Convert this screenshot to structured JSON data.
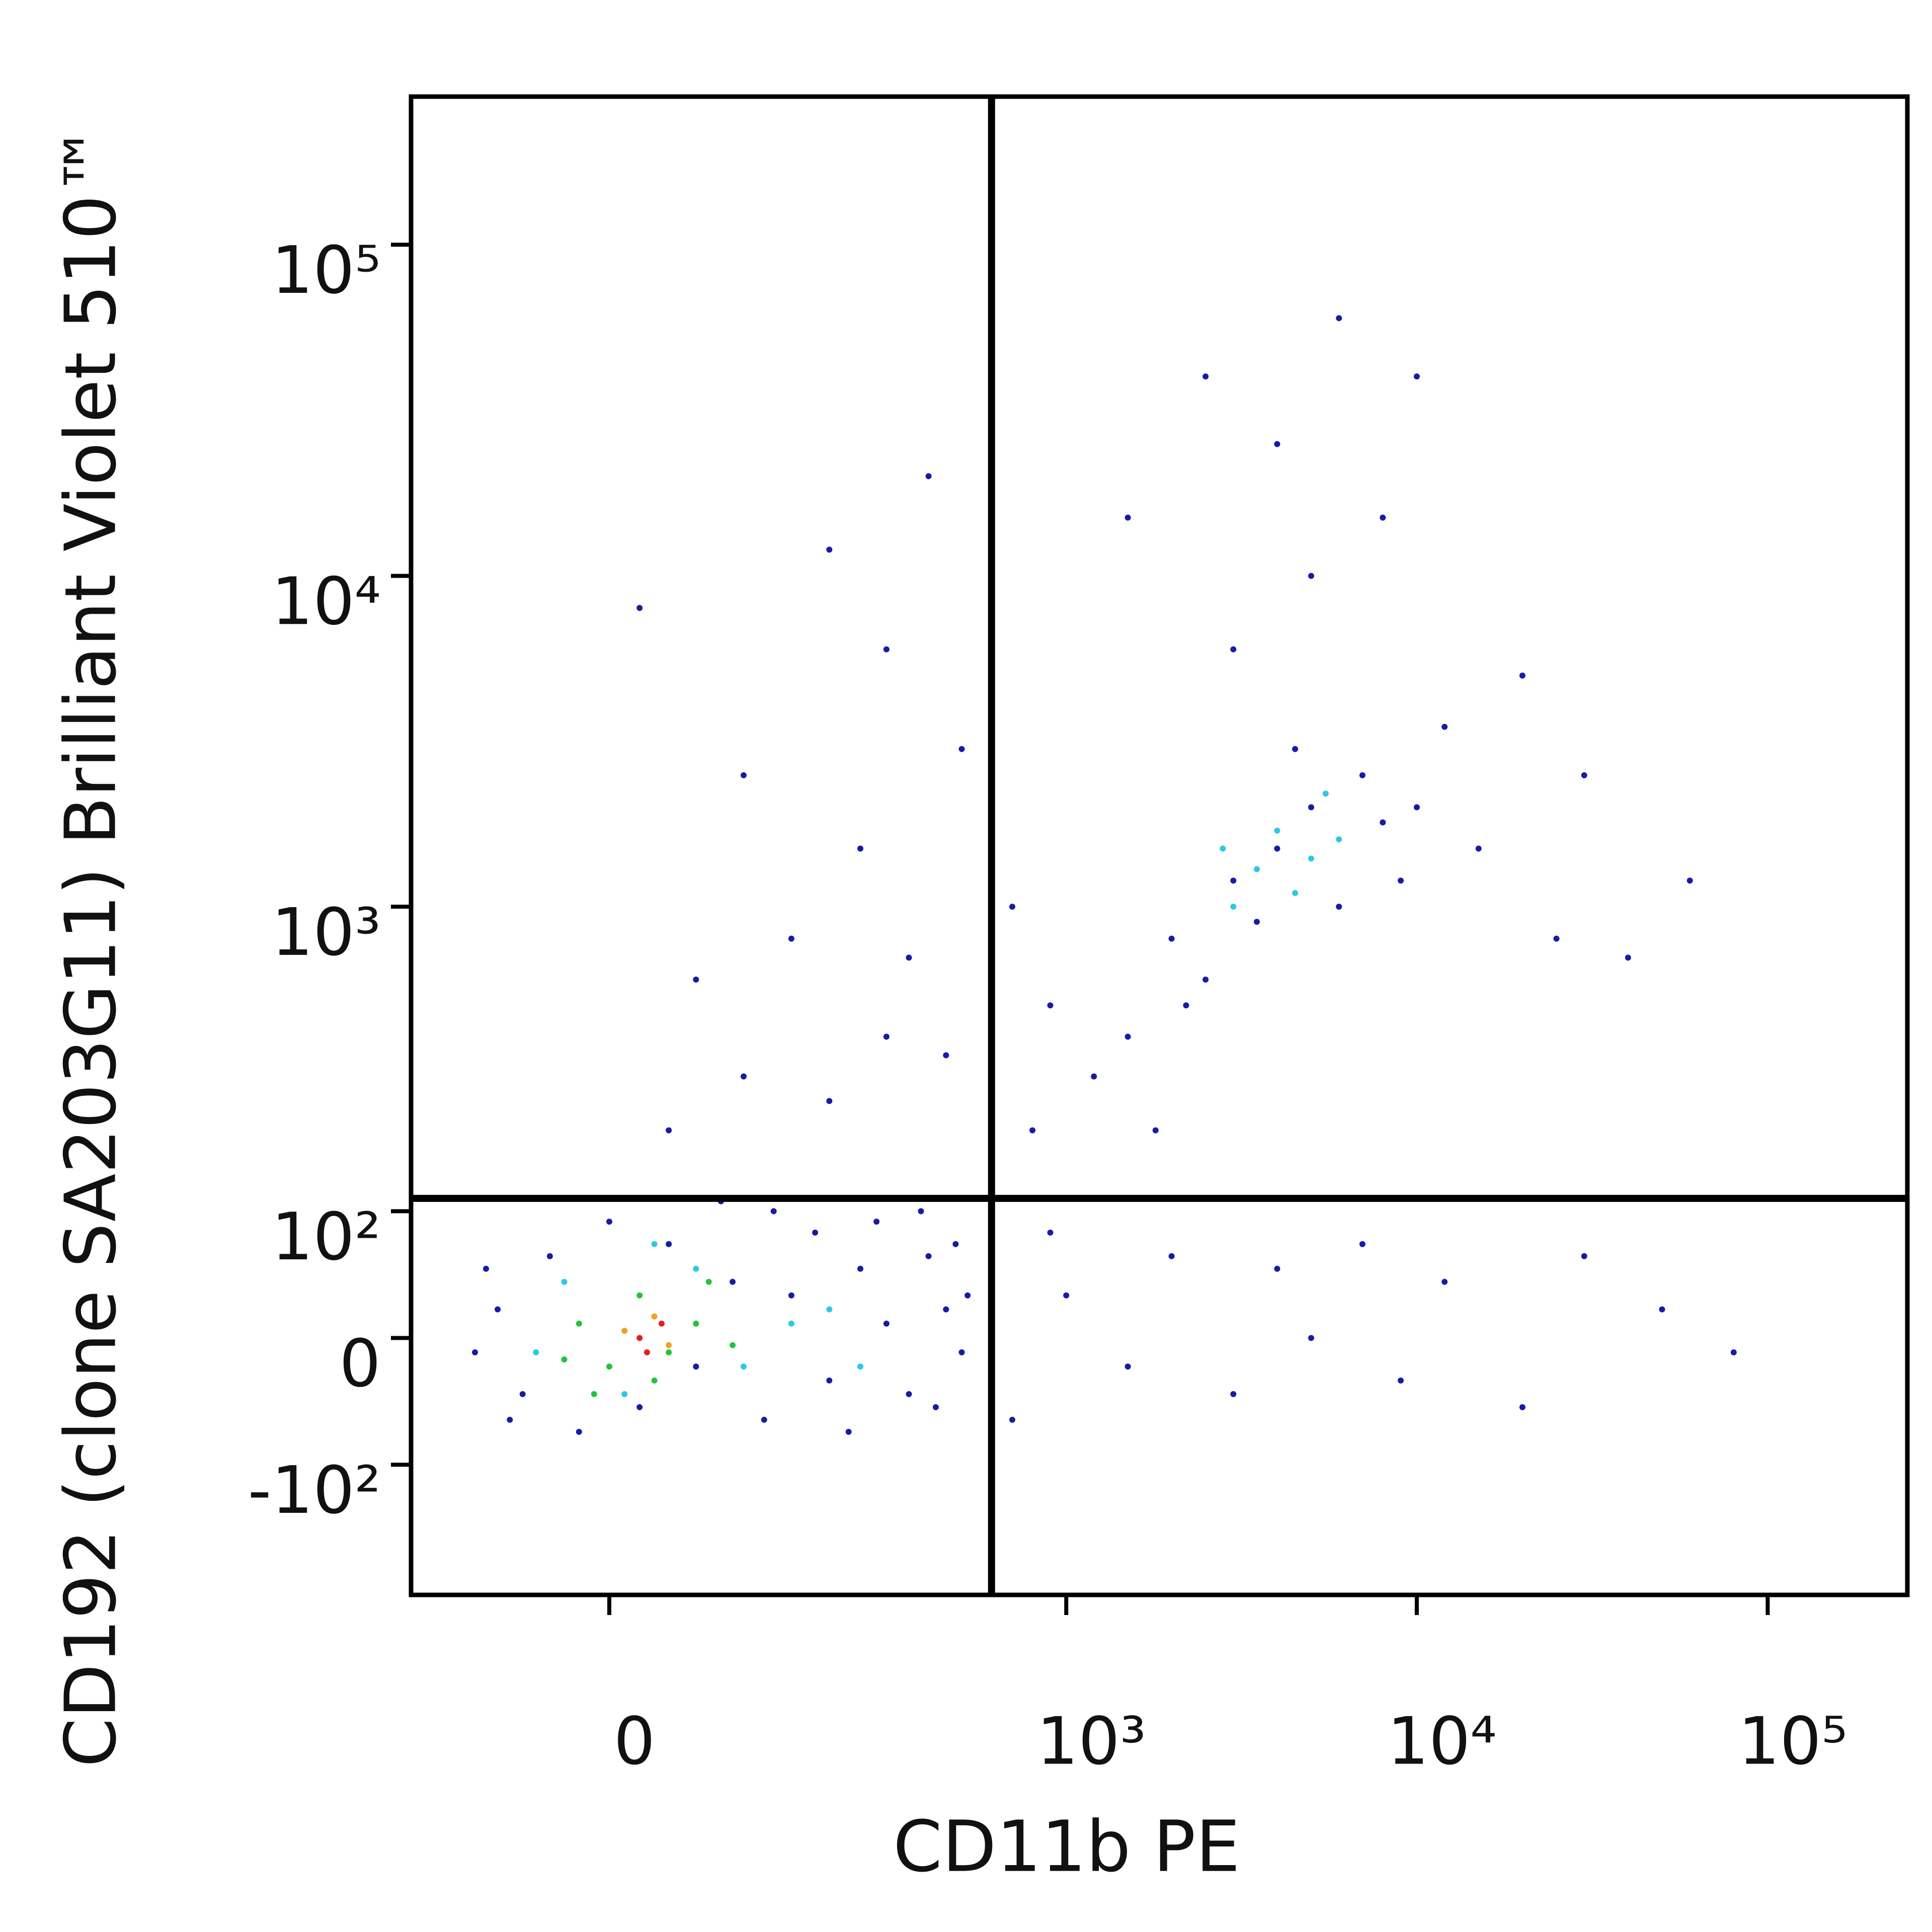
{
  "chart_data": {
    "type": "scatter",
    "xlabel": "CD11b PE",
    "ylabel": "CD192 (clone SA203G11) Brilliant Violet 510™",
    "xscale": "biexponential",
    "yscale": "biexponential",
    "xlim": [
      -170,
      250000
    ],
    "ylim": [
      -290,
      280000
    ],
    "xticks": [
      0,
      {
        "value": 1000,
        "label": "10³"
      },
      {
        "value": 10000,
        "label": "10⁴"
      },
      {
        "value": 100000,
        "label": "10⁵"
      }
    ],
    "yticks": [
      {
        "value": -100,
        "label": "-10²"
      },
      0,
      {
        "value": 100,
        "label": "10²"
      },
      {
        "value": 1000,
        "label": "10³"
      },
      {
        "value": 10000,
        "label": "10⁴"
      },
      {
        "value": 100000,
        "label": "10⁵"
      }
    ],
    "gates": {
      "x": 610,
      "y": 113
    },
    "series": [
      {
        "color": "#1a1aa8",
        "x": [
          -80,
          -60,
          -40,
          -20,
          0,
          20,
          40,
          60,
          90,
          120,
          150,
          180,
          200,
          250,
          300,
          350,
          400,
          450,
          500,
          -100,
          -90,
          80,
          130,
          230,
          280,
          380,
          420,
          480,
          520,
          -70,
          40,
          100,
          200,
          300,
          60,
          150,
          350,
          450,
          250,
          100,
          500,
          300,
          20,
          400,
          200,
          2000,
          3000,
          4000,
          5000,
          6000,
          2500,
          3500,
          7000,
          8000,
          4500,
          1500,
          1200,
          1800,
          2200,
          9000,
          10000,
          12000,
          15000,
          20000,
          3000,
          5000,
          8000,
          4000,
          6000,
          10000,
          2500,
          1500,
          900,
          800,
          700,
          25000,
          40000,
          60000,
          30000,
          1000,
          1500,
          2000,
          3000,
          4000,
          5000,
          7000,
          9000,
          12000,
          20000,
          30000,
          50000,
          80000,
          700,
          900
        ],
        "y": [
          20,
          -40,
          60,
          -70,
          90,
          -50,
          70,
          -20,
          40,
          -60,
          30,
          80,
          -30,
          50,
          10,
          -40,
          60,
          20,
          -10,
          -10,
          50,
          110,
          100,
          -70,
          90,
          100,
          -50,
          70,
          30,
          -60,
          200,
          300,
          250,
          400,
          600,
          800,
          700,
          350,
          1500,
          2500,
          3000,
          6000,
          8000,
          20000,
          12000,
          800,
          1200,
          1500,
          2000,
          1000,
          600,
          900,
          2500,
          1800,
          3000,
          400,
          300,
          200,
          500,
          1200,
          2000,
          3500,
          1500,
          5000,
          6000,
          10000,
          15000,
          25000,
          60000,
          40000,
          40000,
          15000,
          500,
          200,
          1000,
          800,
          700,
          1200,
          2500,
          30,
          -20,
          60,
          -40,
          50,
          0,
          70,
          -30,
          40,
          -50,
          60,
          20,
          -10,
          -60,
          80
        ]
      },
      {
        "color": "#2ec8e6",
        "x": [
          -30,
          10,
          60,
          100,
          150,
          -50,
          30,
          200,
          250,
          3500,
          4000,
          5000,
          3000,
          4500,
          6000,
          2800,
          5500
        ],
        "y": [
          40,
          -40,
          50,
          -20,
          10,
          -10,
          70,
          20,
          -20,
          1300,
          1700,
          1400,
          1000,
          1100,
          1600,
          1500,
          2200
        ]
      },
      {
        "color": "#22c43a",
        "x": [
          -20,
          0,
          20,
          40,
          60,
          -10,
          30,
          70,
          90,
          -30
        ],
        "y": [
          10,
          -20,
          30,
          -10,
          10,
          -40,
          -30,
          40,
          -5,
          -15
        ]
      },
      {
        "color": "#f0a020",
        "x": [
          10,
          30,
          40
        ],
        "y": [
          5,
          15,
          -5
        ]
      },
      {
        "color": "#e02020",
        "x": [
          20,
          35,
          25
        ],
        "y": [
          0,
          10,
          -10
        ]
      }
    ]
  }
}
